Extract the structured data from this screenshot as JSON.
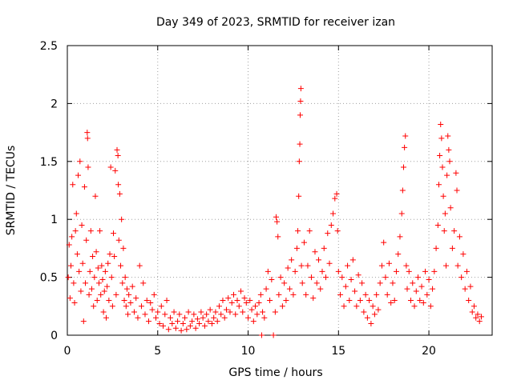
{
  "chart_data": {
    "type": "scatter",
    "title": "Day 349 of 2023, SRMTID for receiver izan",
    "xlabel": "GPS time / hours",
    "ylabel": "SRMTID / TECUs",
    "xlim": [
      0,
      23.5
    ],
    "ylim": [
      0,
      2.5
    ],
    "xticks": [
      0,
      5,
      10,
      15,
      20
    ],
    "xtick_labels": [
      "0",
      "5",
      "10",
      "15",
      "20"
    ],
    "yticks": [
      0,
      0.5,
      1,
      1.5,
      2,
      2.5
    ],
    "ytick_labels": [
      "0",
      "0.5",
      "1",
      "1.5",
      "2",
      "2.5"
    ],
    "grid": true,
    "marker": "+",
    "color": "#ff0000",
    "series": [
      {
        "name": "SRMTID",
        "points": [
          [
            0.05,
            0.5
          ],
          [
            0.1,
            0.78
          ],
          [
            0.15,
            0.32
          ],
          [
            0.2,
            0.6
          ],
          [
            0.25,
            0.85
          ],
          [
            0.3,
            1.3
          ],
          [
            0.35,
            0.45
          ],
          [
            0.4,
            0.28
          ],
          [
            0.45,
            0.9
          ],
          [
            0.5,
            1.05
          ],
          [
            0.55,
            0.7
          ],
          [
            0.6,
            1.38
          ],
          [
            0.65,
            0.55
          ],
          [
            0.7,
            1.5
          ],
          [
            0.75,
            0.38
          ],
          [
            0.8,
            0.95
          ],
          [
            0.85,
            0.62
          ],
          [
            0.9,
            0.12
          ],
          [
            0.95,
            1.28
          ],
          [
            1.0,
            0.45
          ],
          [
            1.05,
            0.82
          ],
          [
            1.1,
            1.75
          ],
          [
            1.12,
            1.7
          ],
          [
            1.15,
            1.45
          ],
          [
            1.2,
            0.35
          ],
          [
            1.25,
            0.55
          ],
          [
            1.3,
            0.9
          ],
          [
            1.35,
            0.4
          ],
          [
            1.4,
            0.68
          ],
          [
            1.45,
            0.25
          ],
          [
            1.5,
            0.5
          ],
          [
            1.55,
            1.2
          ],
          [
            1.6,
            0.72
          ],
          [
            1.65,
            0.3
          ],
          [
            1.7,
            0.58
          ],
          [
            1.75,
            0.45
          ],
          [
            1.8,
            0.9
          ],
          [
            1.85,
            0.35
          ],
          [
            1.9,
            0.6
          ],
          [
            1.95,
            0.48
          ],
          [
            2.0,
            0.2
          ],
          [
            2.05,
            0.38
          ],
          [
            2.1,
            0.55
          ],
          [
            2.15,
            0.15
          ],
          [
            2.2,
            0.42
          ],
          [
            2.25,
            0.62
          ],
          [
            2.3,
            0.3
          ],
          [
            2.35,
            0.7
          ],
          [
            2.4,
            1.45
          ],
          [
            2.45,
            0.5
          ],
          [
            2.5,
            0.25
          ],
          [
            2.55,
            0.88
          ],
          [
            2.6,
            0.68
          ],
          [
            2.65,
            1.42
          ],
          [
            2.7,
            0.35
          ],
          [
            2.75,
            1.6
          ],
          [
            2.8,
            1.55
          ],
          [
            2.82,
            1.3
          ],
          [
            2.85,
            0.82
          ],
          [
            2.9,
            1.22
          ],
          [
            2.95,
            0.6
          ],
          [
            3.0,
            1.0
          ],
          [
            3.05,
            0.45
          ],
          [
            3.1,
            0.75
          ],
          [
            3.15,
            0.3
          ],
          [
            3.2,
            0.5
          ],
          [
            3.25,
            0.25
          ],
          [
            3.3,
            0.4
          ],
          [
            3.35,
            0.18
          ],
          [
            3.4,
            0.35
          ],
          [
            3.5,
            0.28
          ],
          [
            3.6,
            0.42
          ],
          [
            3.7,
            0.2
          ],
          [
            3.8,
            0.32
          ],
          [
            3.9,
            0.15
          ],
          [
            4.0,
            0.6
          ],
          [
            4.1,
            0.25
          ],
          [
            4.2,
            0.45
          ],
          [
            4.3,
            0.18
          ],
          [
            4.4,
            0.3
          ],
          [
            4.5,
            0.12
          ],
          [
            4.6,
            0.28
          ],
          [
            4.7,
            0.22
          ],
          [
            4.8,
            0.35
          ],
          [
            4.9,
            0.15
          ],
          [
            5.0,
            0.2
          ],
          [
            5.1,
            0.1
          ],
          [
            5.2,
            0.25
          ],
          [
            5.3,
            0.08
          ],
          [
            5.4,
            0.18
          ],
          [
            5.5,
            0.3
          ],
          [
            5.6,
            0.05
          ],
          [
            5.7,
            0.15
          ],
          [
            5.8,
            0.1
          ],
          [
            5.9,
            0.2
          ],
          [
            6.0,
            0.06
          ],
          [
            6.1,
            0.12
          ],
          [
            6.2,
            0.18
          ],
          [
            6.3,
            0.04
          ],
          [
            6.4,
            0.1
          ],
          [
            6.5,
            0.15
          ],
          [
            6.6,
            0.05
          ],
          [
            6.7,
            0.2
          ],
          [
            6.8,
            0.08
          ],
          [
            6.9,
            0.12
          ],
          [
            7.0,
            0.18
          ],
          [
            7.1,
            0.06
          ],
          [
            7.2,
            0.14
          ],
          [
            7.3,
            0.1
          ],
          [
            7.4,
            0.2
          ],
          [
            7.5,
            0.15
          ],
          [
            7.6,
            0.08
          ],
          [
            7.7,
            0.18
          ],
          [
            7.8,
            0.12
          ],
          [
            7.9,
            0.22
          ],
          [
            8.0,
            0.1
          ],
          [
            8.1,
            0.15
          ],
          [
            8.2,
            0.2
          ],
          [
            8.3,
            0.12
          ],
          [
            8.4,
            0.25
          ],
          [
            8.5,
            0.18
          ],
          [
            8.6,
            0.3
          ],
          [
            8.7,
            0.15
          ],
          [
            8.8,
            0.22
          ],
          [
            8.9,
            0.32
          ],
          [
            9.0,
            0.2
          ],
          [
            9.1,
            0.28
          ],
          [
            9.2,
            0.35
          ],
          [
            9.3,
            0.18
          ],
          [
            9.4,
            0.3
          ],
          [
            9.5,
            0.25
          ],
          [
            9.6,
            0.38
          ],
          [
            9.7,
            0.2
          ],
          [
            9.8,
            0.32
          ],
          [
            9.9,
            0.28
          ],
          [
            10.0,
            0.15
          ],
          [
            10.1,
            0.3
          ],
          [
            10.2,
            0.22
          ],
          [
            10.3,
            0.12
          ],
          [
            10.4,
            0.25
          ],
          [
            10.5,
            0.18
          ],
          [
            10.6,
            0.28
          ],
          [
            10.7,
            0.35
          ],
          [
            10.75,
            0.0
          ],
          [
            10.8,
            0.2
          ],
          [
            10.9,
            0.15
          ],
          [
            11.0,
            0.4
          ],
          [
            11.1,
            0.55
          ],
          [
            11.2,
            0.3
          ],
          [
            11.3,
            0.48
          ],
          [
            11.4,
            0.0
          ],
          [
            11.5,
            0.2
          ],
          [
            11.55,
            1.02
          ],
          [
            11.6,
            0.98
          ],
          [
            11.65,
            0.85
          ],
          [
            11.7,
            0.35
          ],
          [
            11.8,
            0.5
          ],
          [
            11.9,
            0.25
          ],
          [
            12.0,
            0.45
          ],
          [
            12.1,
            0.3
          ],
          [
            12.2,
            0.58
          ],
          [
            12.3,
            0.4
          ],
          [
            12.4,
            0.65
          ],
          [
            12.5,
            0.35
          ],
          [
            12.6,
            0.55
          ],
          [
            12.7,
            0.75
          ],
          [
            12.75,
            0.9
          ],
          [
            12.8,
            1.2
          ],
          [
            12.83,
            1.5
          ],
          [
            12.86,
            1.65
          ],
          [
            12.88,
            1.9
          ],
          [
            12.9,
            2.02
          ],
          [
            12.92,
            2.13
          ],
          [
            12.95,
            0.6
          ],
          [
            13.0,
            0.45
          ],
          [
            13.1,
            0.8
          ],
          [
            13.2,
            0.35
          ],
          [
            13.3,
            0.6
          ],
          [
            13.4,
            0.9
          ],
          [
            13.5,
            0.5
          ],
          [
            13.6,
            0.32
          ],
          [
            13.7,
            0.72
          ],
          [
            13.8,
            0.45
          ],
          [
            13.9,
            0.65
          ],
          [
            14.0,
            0.4
          ],
          [
            14.1,
            0.55
          ],
          [
            14.2,
            0.75
          ],
          [
            14.3,
            0.5
          ],
          [
            14.4,
            0.88
          ],
          [
            14.5,
            0.62
          ],
          [
            14.6,
            0.95
          ],
          [
            14.7,
            1.05
          ],
          [
            14.8,
            1.18
          ],
          [
            14.9,
            1.22
          ],
          [
            14.95,
            0.9
          ],
          [
            15.0,
            0.55
          ],
          [
            15.1,
            0.35
          ],
          [
            15.2,
            0.5
          ],
          [
            15.3,
            0.25
          ],
          [
            15.4,
            0.42
          ],
          [
            15.5,
            0.6
          ],
          [
            15.6,
            0.3
          ],
          [
            15.7,
            0.48
          ],
          [
            15.8,
            0.65
          ],
          [
            15.9,
            0.38
          ],
          [
            16.0,
            0.25
          ],
          [
            16.1,
            0.52
          ],
          [
            16.2,
            0.3
          ],
          [
            16.3,
            0.45
          ],
          [
            16.4,
            0.2
          ],
          [
            16.5,
            0.35
          ],
          [
            16.6,
            0.15
          ],
          [
            16.7,
            0.3
          ],
          [
            16.8,
            0.1
          ],
          [
            16.9,
            0.25
          ],
          [
            17.0,
            0.18
          ],
          [
            17.1,
            0.35
          ],
          [
            17.2,
            0.22
          ],
          [
            17.3,
            0.45
          ],
          [
            17.4,
            0.6
          ],
          [
            17.5,
            0.8
          ],
          [
            17.6,
            0.5
          ],
          [
            17.7,
            0.35
          ],
          [
            17.8,
            0.62
          ],
          [
            17.9,
            0.28
          ],
          [
            18.0,
            0.45
          ],
          [
            18.1,
            0.3
          ],
          [
            18.2,
            0.55
          ],
          [
            18.3,
            0.7
          ],
          [
            18.4,
            0.85
          ],
          [
            18.5,
            1.05
          ],
          [
            18.55,
            1.25
          ],
          [
            18.6,
            1.45
          ],
          [
            18.65,
            1.62
          ],
          [
            18.7,
            1.72
          ],
          [
            18.75,
            0.6
          ],
          [
            18.8,
            0.4
          ],
          [
            18.9,
            0.55
          ],
          [
            19.0,
            0.3
          ],
          [
            19.1,
            0.45
          ],
          [
            19.2,
            0.25
          ],
          [
            19.3,
            0.38
          ],
          [
            19.4,
            0.5
          ],
          [
            19.5,
            0.3
          ],
          [
            19.6,
            0.42
          ],
          [
            19.7,
            0.28
          ],
          [
            19.8,
            0.55
          ],
          [
            19.9,
            0.35
          ],
          [
            20.0,
            0.48
          ],
          [
            20.1,
            0.25
          ],
          [
            20.2,
            0.4
          ],
          [
            20.3,
            0.55
          ],
          [
            20.4,
            0.75
          ],
          [
            20.5,
            0.95
          ],
          [
            20.55,
            1.3
          ],
          [
            20.6,
            1.55
          ],
          [
            20.65,
            1.82
          ],
          [
            20.7,
            1.7
          ],
          [
            20.75,
            1.45
          ],
          [
            20.8,
            1.2
          ],
          [
            20.85,
            0.9
          ],
          [
            20.9,
            1.05
          ],
          [
            20.95,
            0.6
          ],
          [
            21.0,
            1.38
          ],
          [
            21.05,
            1.72
          ],
          [
            21.1,
            1.6
          ],
          [
            21.15,
            1.5
          ],
          [
            21.2,
            1.1
          ],
          [
            21.3,
            0.75
          ],
          [
            21.4,
            0.9
          ],
          [
            21.5,
            1.4
          ],
          [
            21.55,
            1.25
          ],
          [
            21.6,
            0.6
          ],
          [
            21.7,
            0.85
          ],
          [
            21.8,
            0.5
          ],
          [
            21.9,
            0.7
          ],
          [
            22.0,
            0.4
          ],
          [
            22.1,
            0.55
          ],
          [
            22.2,
            0.3
          ],
          [
            22.3,
            0.42
          ],
          [
            22.4,
            0.2
          ],
          [
            22.5,
            0.25
          ],
          [
            22.6,
            0.15
          ],
          [
            22.7,
            0.18
          ],
          [
            22.8,
            0.12
          ],
          [
            22.9,
            0.16
          ]
        ]
      }
    ]
  }
}
